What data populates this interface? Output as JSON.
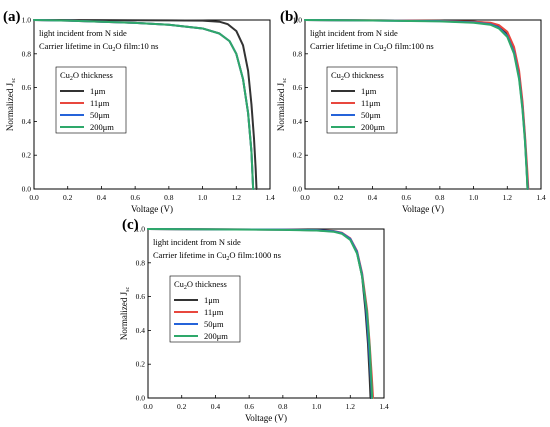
{
  "chart_data": [
    {
      "type": "line",
      "panel_label": "(a)",
      "annotation_line1": "light incident from N side",
      "annotation_line2_pre": "Carrier lifetime in Cu",
      "annotation_line2_sub": "2",
      "annotation_line2_post": "O film:10 ns",
      "xlabel": "Voltage (V)",
      "ylabel_main": "Normalized J",
      "ylabel_sub": "sc",
      "xlim": [
        0,
        1.4
      ],
      "ylim": [
        0,
        1.0
      ],
      "xticks": [
        "0.0",
        "0.2",
        "0.4",
        "0.6",
        "0.8",
        "1.0",
        "1.2",
        "1.4"
      ],
      "yticks": [
        "0.0",
        "0.2",
        "0.4",
        "0.6",
        "0.8",
        "1.0"
      ],
      "legend_title_pre": "Cu",
      "legend_title_sub": "2",
      "legend_title_post": "O thickness",
      "legend_placement": "center-left",
      "series": [
        {
          "name": "1μm",
          "color": "#333333",
          "points": [
            [
              0.0,
              1.0
            ],
            [
              0.4,
              0.999
            ],
            [
              0.8,
              0.998
            ],
            [
              1.0,
              0.996
            ],
            [
              1.1,
              0.99
            ],
            [
              1.15,
              0.975
            ],
            [
              1.2,
              0.935
            ],
            [
              1.24,
              0.85
            ],
            [
              1.27,
              0.7
            ],
            [
              1.29,
              0.5
            ],
            [
              1.305,
              0.3
            ],
            [
              1.315,
              0.12
            ],
            [
              1.32,
              0.0
            ]
          ]
        },
        {
          "name": "11μm",
          "color": "#e8473e",
          "points": [
            [
              0.0,
              1.0
            ],
            [
              0.2,
              0.996
            ],
            [
              0.4,
              0.99
            ],
            [
              0.6,
              0.983
            ],
            [
              0.8,
              0.972
            ],
            [
              1.0,
              0.95
            ],
            [
              1.1,
              0.92
            ],
            [
              1.16,
              0.875
            ],
            [
              1.2,
              0.8
            ],
            [
              1.24,
              0.65
            ],
            [
              1.27,
              0.45
            ],
            [
              1.29,
              0.22
            ],
            [
              1.3,
              0.0
            ]
          ]
        },
        {
          "name": "50μm",
          "color": "#2563d9",
          "points": [
            [
              0.0,
              1.0
            ],
            [
              0.2,
              0.996
            ],
            [
              0.4,
              0.99
            ],
            [
              0.6,
              0.983
            ],
            [
              0.8,
              0.972
            ],
            [
              1.0,
              0.95
            ],
            [
              1.1,
              0.92
            ],
            [
              1.16,
              0.875
            ],
            [
              1.2,
              0.8
            ],
            [
              1.24,
              0.65
            ],
            [
              1.27,
              0.45
            ],
            [
              1.29,
              0.22
            ],
            [
              1.3,
              0.0
            ]
          ]
        },
        {
          "name": "200μm",
          "color": "#2ea86a",
          "points": [
            [
              0.0,
              1.0
            ],
            [
              0.2,
              0.996
            ],
            [
              0.4,
              0.99
            ],
            [
              0.6,
              0.983
            ],
            [
              0.8,
              0.972
            ],
            [
              1.0,
              0.95
            ],
            [
              1.1,
              0.92
            ],
            [
              1.16,
              0.875
            ],
            [
              1.2,
              0.8
            ],
            [
              1.24,
              0.65
            ],
            [
              1.27,
              0.45
            ],
            [
              1.29,
              0.22
            ],
            [
              1.3,
              0.0
            ]
          ]
        }
      ]
    },
    {
      "type": "line",
      "panel_label": "(b)",
      "annotation_line1": "light incident from N side",
      "annotation_line2_pre": "Carrier lifetime in Cu",
      "annotation_line2_sub": "2",
      "annotation_line2_post": "O film:100 ns",
      "xlabel": "Voltage (V)",
      "ylabel_main": "Normalized J",
      "ylabel_sub": "sc",
      "xlim": [
        0,
        1.4
      ],
      "ylim": [
        0,
        1.0
      ],
      "xticks": [
        "0.0",
        "0.2",
        "0.4",
        "0.6",
        "0.8",
        "1.0",
        "1.2",
        "1.4"
      ],
      "yticks": [
        "0.0",
        "0.2",
        "0.4",
        "0.6",
        "0.8",
        "1.0"
      ],
      "legend_title_pre": "Cu",
      "legend_title_sub": "2",
      "legend_title_post": "O thickness",
      "legend_placement": "center-left",
      "series": [
        {
          "name": "1μm",
          "color": "#333333",
          "points": [
            [
              0.0,
              1.0
            ],
            [
              0.4,
              0.998
            ],
            [
              0.8,
              0.995
            ],
            [
              1.0,
              0.99
            ],
            [
              1.1,
              0.982
            ],
            [
              1.15,
              0.965
            ],
            [
              1.2,
              0.92
            ],
            [
              1.24,
              0.83
            ],
            [
              1.27,
              0.68
            ],
            [
              1.29,
              0.5
            ],
            [
              1.305,
              0.3
            ],
            [
              1.315,
              0.12
            ],
            [
              1.32,
              0.0
            ]
          ]
        },
        {
          "name": "11μm",
          "color": "#e8473e",
          "points": [
            [
              0.0,
              1.0
            ],
            [
              0.4,
              0.998
            ],
            [
              0.8,
              0.995
            ],
            [
              1.0,
              0.99
            ],
            [
              1.1,
              0.984
            ],
            [
              1.15,
              0.97
            ],
            [
              1.2,
              0.93
            ],
            [
              1.24,
              0.84
            ],
            [
              1.27,
              0.7
            ],
            [
              1.29,
              0.52
            ],
            [
              1.305,
              0.32
            ],
            [
              1.318,
              0.12
            ],
            [
              1.325,
              0.0
            ]
          ]
        },
        {
          "name": "50μm",
          "color": "#2563d9",
          "points": [
            [
              0.0,
              1.0
            ],
            [
              0.4,
              0.997
            ],
            [
              0.8,
              0.993
            ],
            [
              1.0,
              0.986
            ],
            [
              1.1,
              0.975
            ],
            [
              1.15,
              0.955
            ],
            [
              1.2,
              0.905
            ],
            [
              1.24,
              0.81
            ],
            [
              1.27,
              0.66
            ],
            [
              1.29,
              0.48
            ],
            [
              1.305,
              0.29
            ],
            [
              1.315,
              0.11
            ],
            [
              1.322,
              0.0
            ]
          ]
        },
        {
          "name": "200μm",
          "color": "#2ea86a",
          "points": [
            [
              0.0,
              1.0
            ],
            [
              0.4,
              0.997
            ],
            [
              0.8,
              0.992
            ],
            [
              1.0,
              0.984
            ],
            [
              1.1,
              0.972
            ],
            [
              1.15,
              0.95
            ],
            [
              1.2,
              0.9
            ],
            [
              1.24,
              0.8
            ],
            [
              1.27,
              0.65
            ],
            [
              1.29,
              0.47
            ],
            [
              1.305,
              0.28
            ],
            [
              1.315,
              0.1
            ],
            [
              1.32,
              0.0
            ]
          ]
        }
      ]
    },
    {
      "type": "line",
      "panel_label": "(c)",
      "annotation_line1": "light incident from N side",
      "annotation_line2_pre": "Carrier lifetime in Cu",
      "annotation_line2_sub": "2",
      "annotation_line2_post": "O film:1000 ns",
      "xlabel": "Voltage (V)",
      "ylabel_main": "Normalized J",
      "ylabel_sub": "sc",
      "xlim": [
        0,
        1.4
      ],
      "ylim": [
        0,
        1.0
      ],
      "xticks": [
        "0.0",
        "0.2",
        "0.4",
        "0.6",
        "0.8",
        "1.0",
        "1.2",
        "1.4"
      ],
      "yticks": [
        "0.0",
        "0.2",
        "0.4",
        "0.6",
        "0.8",
        "1.0"
      ],
      "legend_title_pre": "Cu",
      "legend_title_sub": "2",
      "legend_title_post": "O thickness",
      "legend_placement": "center-left",
      "series": [
        {
          "name": "1μm",
          "color": "#333333",
          "points": [
            [
              0.0,
              1.0
            ],
            [
              0.4,
              0.998
            ],
            [
              0.8,
              0.996
            ],
            [
              1.0,
              0.992
            ],
            [
              1.1,
              0.986
            ],
            [
              1.15,
              0.975
            ],
            [
              1.2,
              0.94
            ],
            [
              1.24,
              0.86
            ],
            [
              1.27,
              0.72
            ],
            [
              1.29,
              0.52
            ],
            [
              1.305,
              0.32
            ],
            [
              1.315,
              0.12
            ],
            [
              1.32,
              0.0
            ]
          ]
        },
        {
          "name": "11μm",
          "color": "#e8473e",
          "points": [
            [
              0.0,
              1.0
            ],
            [
              0.4,
              0.998
            ],
            [
              0.8,
              0.996
            ],
            [
              1.0,
              0.993
            ],
            [
              1.1,
              0.988
            ],
            [
              1.15,
              0.978
            ],
            [
              1.2,
              0.945
            ],
            [
              1.24,
              0.87
            ],
            [
              1.27,
              0.74
            ],
            [
              1.3,
              0.52
            ],
            [
              1.315,
              0.32
            ],
            [
              1.328,
              0.12
            ],
            [
              1.335,
              0.0
            ]
          ]
        },
        {
          "name": "50μm",
          "color": "#2563d9",
          "points": [
            [
              0.0,
              1.0
            ],
            [
              0.4,
              0.998
            ],
            [
              0.8,
              0.996
            ],
            [
              1.0,
              0.993
            ],
            [
              1.1,
              0.987
            ],
            [
              1.15,
              0.976
            ],
            [
              1.2,
              0.942
            ],
            [
              1.24,
              0.865
            ],
            [
              1.27,
              0.73
            ],
            [
              1.295,
              0.52
            ],
            [
              1.31,
              0.32
            ],
            [
              1.322,
              0.12
            ],
            [
              1.328,
              0.0
            ]
          ]
        },
        {
          "name": "200μm",
          "color": "#2ea86a",
          "points": [
            [
              0.0,
              1.0
            ],
            [
              0.4,
              0.998
            ],
            [
              0.8,
              0.995
            ],
            [
              1.0,
              0.991
            ],
            [
              1.1,
              0.984
            ],
            [
              1.15,
              0.972
            ],
            [
              1.2,
              0.935
            ],
            [
              1.24,
              0.855
            ],
            [
              1.27,
              0.72
            ],
            [
              1.3,
              0.5
            ],
            [
              1.315,
              0.3
            ],
            [
              1.325,
              0.1
            ],
            [
              1.33,
              0.0
            ]
          ]
        }
      ]
    }
  ]
}
